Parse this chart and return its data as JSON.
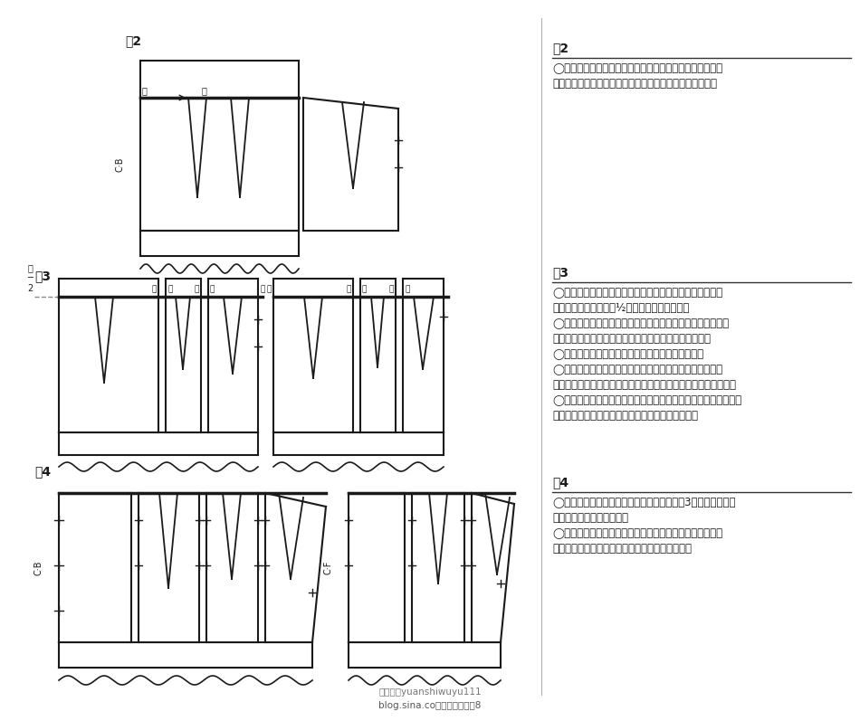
{
  "bg_color": "#ffffff",
  "line_color": "#1a1a1a",
  "text_color": "#1a1a1a",
  "fig2_label": "図2",
  "fig3_label": "図3",
  "fig4_label": "図4",
  "fig2_title": "図2",
  "fig2_lines": [
    "◯スカートの後中心線の延長線上に、ハイウエスト部分を",
    "　重ね、ダーツ位置（カ）が突き合わされるようにする。"
  ],
  "fig3_title": "図3",
  "fig3_lines": [
    "◯後中心線上で、身頃とスカートのウエストラインが離れ",
    "　ている分量（キ）の½位を（カ）で重ねる。",
    "◯（カ）で重ねた分量と同分量を、後スカートのウエストラ",
    "　インのダーツ位置（カ）・（ク）・（ケ）で重ねる。",
    "◯後脇のウエスト位置（ケ）でも同分量を重ねる。",
    "◯前スカートの中心線の延長線上にハイウエスト部分の中",
    "　心線をのせ（コ）で（カ）で重なった分量と同分量を重ねる。",
    "◯前スカートの各ダーツ位置（コ）・（サ）・（サ）と脇ウエス",
    "　ト位置（ケ）でも、後と同じく同分量を重ねる。"
  ],
  "fig4_title": "図4",
  "fig4_lines": [
    "◯ウエスト位置の合い印は、重ねた部分（図3の斜線部分）の",
    "　高い方の位置にいれる。",
    "◯ハイウエスト部分の出来上がり線は、ダーツを縫い合わ",
    "　せた状態でつながり良くなるようにかき直す。"
  ],
  "watermark1": "微信号：yuanshiwuyu111",
  "watermark2": "blog.sina.co才智服装制版号8"
}
